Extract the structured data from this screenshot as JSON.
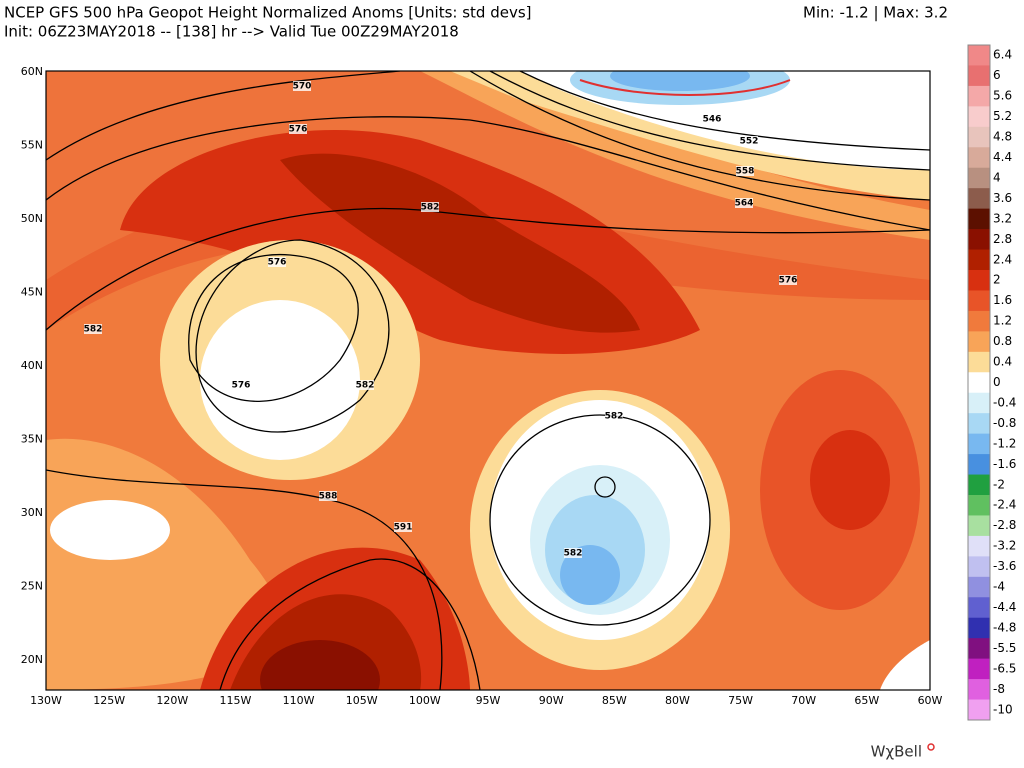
{
  "header": {
    "title": "NCEP GFS 500 hPa Geopot Height Normalized Anoms [Units: std devs]",
    "subtitle": "Init: 06Z23MAY2018 -- [138] hr --> Valid Tue 00Z29MAY2018",
    "range": "Min: -1.2 | Max: 3.2"
  },
  "map": {
    "lon_labels": [
      "130W",
      "125W",
      "120W",
      "115W",
      "110W",
      "105W",
      "100W",
      "95W",
      "90W",
      "85W",
      "80W",
      "75W",
      "70W",
      "65W",
      "60W"
    ],
    "lat_labels": [
      "60N",
      "55N",
      "50N",
      "45N",
      "40N",
      "35N",
      "30N",
      "25N",
      "20N"
    ],
    "contour_labels": [
      "570",
      "576",
      "582",
      "576",
      "576",
      "582",
      "588",
      "591",
      "582",
      "582",
      "546",
      "552",
      "558",
      "564",
      "576",
      "582"
    ]
  },
  "colorbar": [
    {
      "label": "6.4",
      "color": "#f08888"
    },
    {
      "label": "6",
      "color": "#e87070"
    },
    {
      "label": "5.6",
      "color": "#f4a8a8"
    },
    {
      "label": "5.2",
      "color": "#f8cccc"
    },
    {
      "label": "4.8",
      "color": "#e8c4bc"
    },
    {
      "label": "4.4",
      "color": "#d8aa9a"
    },
    {
      "label": "4",
      "color": "#b89080"
    },
    {
      "label": "3.6",
      "color": "#8c5c4c"
    },
    {
      "label": "3.2",
      "color": "#5c1000"
    },
    {
      "label": "2.8",
      "color": "#8a1000"
    },
    {
      "label": "2.4",
      "color": "#b02000"
    },
    {
      "label": "2",
      "color": "#d83010"
    },
    {
      "label": "1.6",
      "color": "#e85428"
    },
    {
      "label": "1.2",
      "color": "#f07a3c"
    },
    {
      "label": "0.8",
      "color": "#f8a458"
    },
    {
      "label": "0.4",
      "color": "#fcdc98"
    },
    {
      "label": "0",
      "color": "#ffffff"
    },
    {
      "label": "-0.4",
      "color": "#d8f0f8"
    },
    {
      "label": "-0.8",
      "color": "#a8d8f4"
    },
    {
      "label": "-1.2",
      "color": "#78b8f0"
    },
    {
      "label": "-1.6",
      "color": "#4890e0"
    },
    {
      "label": "-2",
      "color": "#20a040"
    },
    {
      "label": "-2.4",
      "color": "#60c060"
    },
    {
      "label": "-2.8",
      "color": "#a8e0a0"
    },
    {
      "label": "-3.2",
      "color": "#e0e0f8"
    },
    {
      "label": "-3.6",
      "color": "#c0c0f0"
    },
    {
      "label": "-4",
      "color": "#9090e0"
    },
    {
      "label": "-4.4",
      "color": "#6060d0"
    },
    {
      "label": "-4.8",
      "color": "#3030b0"
    },
    {
      "label": "-5.5",
      "color": "#801080"
    },
    {
      "label": "-6.5",
      "color": "#c020c0"
    },
    {
      "label": "-8",
      "color": "#e060e0"
    },
    {
      "label": "-10",
      "color": "#f0a0f0"
    }
  ],
  "watermark": "WχBell"
}
